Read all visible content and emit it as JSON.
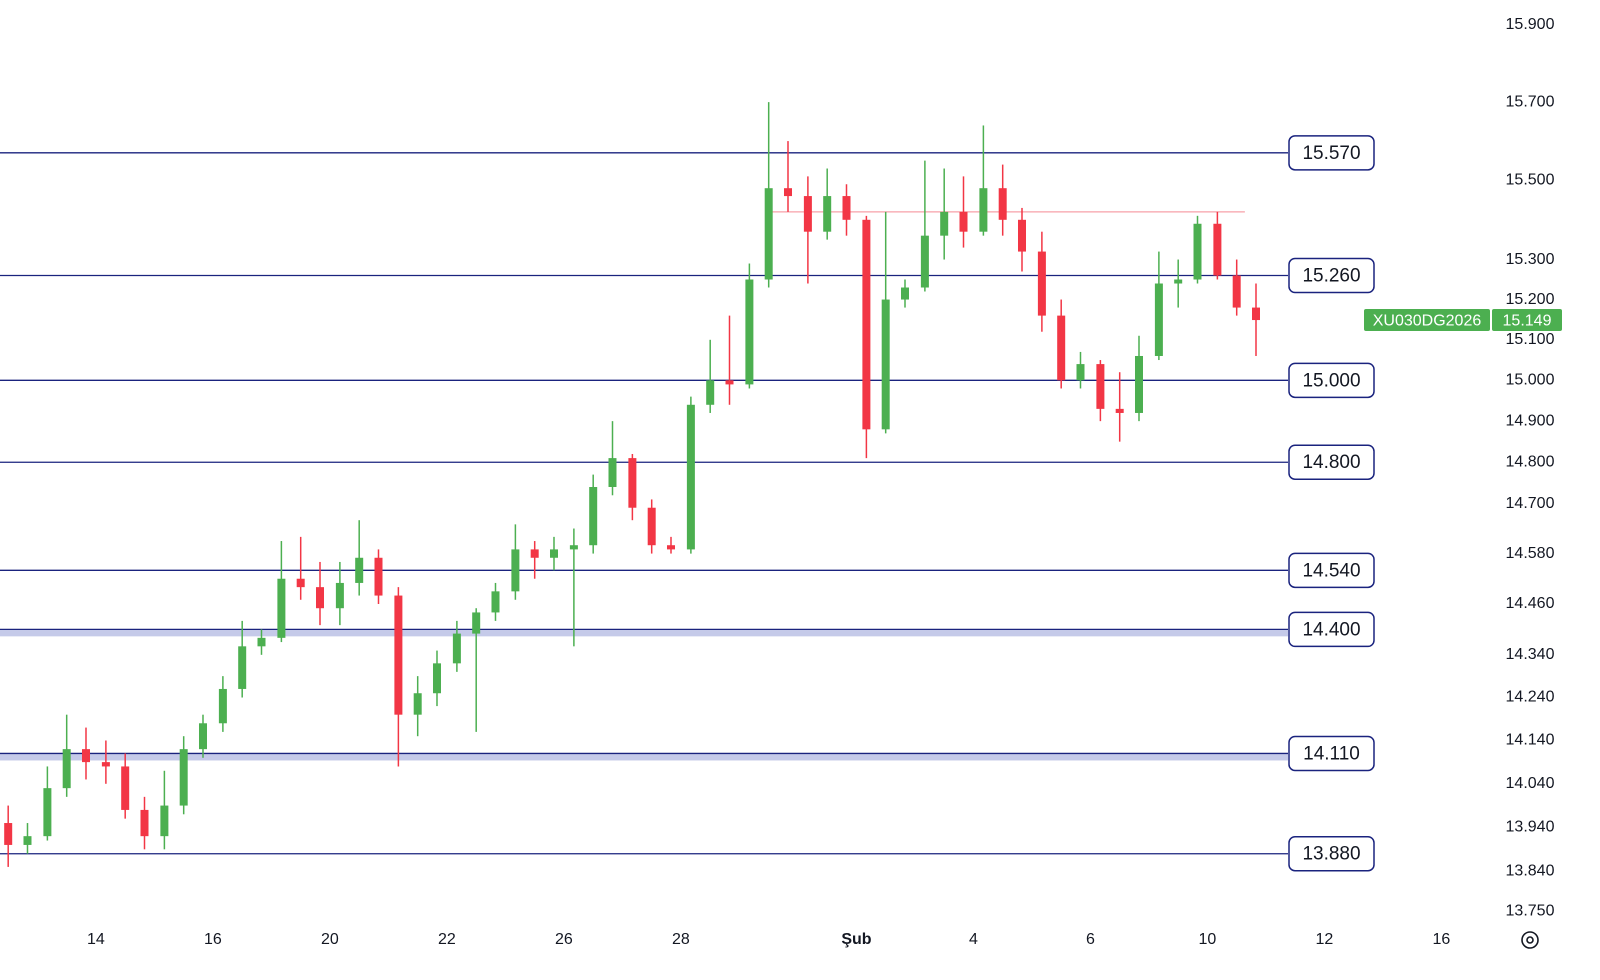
{
  "chart_data": {
    "type": "candlestick",
    "x": [
      -1.5,
      -1.17,
      -0.83,
      -0.5,
      -0.17,
      0.17,
      0.5,
      0.83,
      1.17,
      1.5,
      1.83,
      2.17,
      2.5,
      2.83,
      3.17,
      3.5,
      3.83,
      4.17,
      4.5,
      4.83,
      5.17,
      5.5,
      5.83,
      6.17,
      6.5,
      6.83,
      7.17,
      7.5,
      7.83,
      8.17,
      8.5,
      8.83,
      9.17,
      9.5,
      9.83,
      10.17,
      10.5,
      10.83,
      11.17,
      11.5,
      11.83,
      12.17,
      12.5,
      12.83,
      13.17,
      13.5,
      13.83,
      14.17,
      14.5,
      14.83,
      15.17,
      15.5,
      15.83,
      16.17,
      16.5,
      16.83,
      17.17,
      17.5,
      17.83,
      18.17,
      18.5,
      18.83,
      19.17,
      19.5,
      19.83
    ],
    "open": [
      13950,
      13900,
      13920,
      14030,
      14120,
      14090,
      14080,
      13980,
      13920,
      13990,
      14120,
      14180,
      14260,
      14360,
      14380,
      14520,
      14500,
      14450,
      14510,
      14570,
      14480,
      14200,
      14250,
      14320,
      14390,
      14440,
      14490,
      14590,
      14570,
      14590,
      14600,
      14740,
      14810,
      14690,
      14600,
      14590,
      14940,
      15000,
      14990,
      15250,
      15480,
      15460,
      15370,
      15460,
      15400,
      14880,
      15200,
      15230,
      15360,
      15420,
      15370,
      15480,
      15400,
      15320,
      15160,
      15000,
      15040,
      14930,
      14920,
      15060,
      15240,
      15250,
      15390,
      15260,
      15180
    ],
    "high": [
      13990,
      13950,
      14080,
      14200,
      14170,
      14140,
      14110,
      14010,
      14070,
      14150,
      14200,
      14290,
      14420,
      14400,
      14610,
      14620,
      14560,
      14560,
      14660,
      14590,
      14500,
      14290,
      14350,
      14420,
      14450,
      14510,
      14650,
      14610,
      14620,
      14640,
      14770,
      14900,
      14820,
      14710,
      14620,
      14960,
      15100,
      15160,
      15290,
      15700,
      15600,
      15510,
      15530,
      15490,
      15410,
      15420,
      15250,
      15550,
      15530,
      15510,
      15640,
      15540,
      15430,
      15370,
      15200,
      15070,
      15050,
      15020,
      15110,
      15320,
      15300,
      15410,
      15420,
      15300,
      15240
    ],
    "low": [
      13850,
      13880,
      13910,
      14010,
      14050,
      14040,
      13960,
      13890,
      13890,
      13970,
      14100,
      14160,
      14240,
      14340,
      14370,
      14470,
      14410,
      14410,
      14480,
      14460,
      14080,
      14150,
      14220,
      14300,
      14160,
      14420,
      14470,
      14520,
      14540,
      14360,
      14580,
      14720,
      14660,
      14580,
      14580,
      14580,
      14920,
      14940,
      14980,
      15230,
      15420,
      15240,
      15350,
      15360,
      14810,
      14870,
      15180,
      15220,
      15300,
      15330,
      15360,
      15360,
      15270,
      15120,
      14980,
      14980,
      14900,
      14850,
      14900,
      15050,
      15180,
      15240,
      15250,
      15160,
      15060
    ],
    "close": [
      13900,
      13920,
      14030,
      14120,
      14090,
      14080,
      13980,
      13920,
      13990,
      14120,
      14180,
      14260,
      14360,
      14380,
      14520,
      14500,
      14450,
      14510,
      14570,
      14480,
      14200,
      14250,
      14320,
      14390,
      14440,
      14490,
      14590,
      14570,
      14590,
      14600,
      14740,
      14810,
      14690,
      14600,
      14590,
      14940,
      15000,
      14990,
      15250,
      15480,
      15460,
      15370,
      15460,
      15400,
      14880,
      15200,
      15230,
      15360,
      15420,
      15370,
      15480,
      15400,
      15320,
      15160,
      15000,
      15040,
      14930,
      14920,
      15060,
      15240,
      15250,
      15390,
      15260,
      15180,
      15149
    ],
    "up_color": "#4caf50",
    "down_color": "#f23645",
    "log_scale": true,
    "ylim": [
      13730,
      15965
    ],
    "yticks": [
      {
        "value": 15900,
        "label": "15.900"
      },
      {
        "value": 15700,
        "label": "15.700"
      },
      {
        "value": 15500,
        "label": "15.500"
      },
      {
        "value": 15300,
        "label": "15.300"
      },
      {
        "value": 15200,
        "label": "15.200"
      },
      {
        "value": 15100,
        "label": "15.100"
      },
      {
        "value": 15000,
        "label": "15.000"
      },
      {
        "value": 14900,
        "label": "14.900"
      },
      {
        "value": 14800,
        "label": "14.800"
      },
      {
        "value": 14700,
        "label": "14.700"
      },
      {
        "value": 14580,
        "label": "14.580"
      },
      {
        "value": 14460,
        "label": "14.460"
      },
      {
        "value": 14340,
        "label": "14.340"
      },
      {
        "value": 14240,
        "label": "14.240"
      },
      {
        "value": 14140,
        "label": "14.140"
      },
      {
        "value": 14040,
        "label": "14.040"
      },
      {
        "value": 13940,
        "label": "13.940"
      },
      {
        "value": 13840,
        "label": "13.840"
      },
      {
        "value": 13750,
        "label": "13.750"
      }
    ],
    "xlim": [
      -1.64,
      23.83
    ],
    "xticks": [
      {
        "value": 0,
        "label": "14"
      },
      {
        "value": 2,
        "label": "16"
      },
      {
        "value": 4,
        "label": "20"
      },
      {
        "value": 6,
        "label": "22"
      },
      {
        "value": 8,
        "label": "26"
      },
      {
        "value": 10,
        "label": "28"
      },
      {
        "value": 13,
        "label": "Şub"
      },
      {
        "value": 15,
        "label": "4"
      },
      {
        "value": 17,
        "label": "6"
      },
      {
        "value": 19,
        "label": "10"
      },
      {
        "value": 21,
        "label": "12"
      },
      {
        "value": 23,
        "label": "16"
      }
    ],
    "levels": [
      {
        "value": 15570,
        "label": "15.570"
      },
      {
        "value": 15260,
        "label": "15.260"
      },
      {
        "value": 15000,
        "label": "15.000"
      },
      {
        "value": 14800,
        "label": "14.800"
      },
      {
        "value": 14540,
        "label": "14.540"
      },
      {
        "value": 14400,
        "label": "14.400",
        "shaded": true
      },
      {
        "value": 14110,
        "label": "14.110",
        "shaded": true
      },
      {
        "value": 13880,
        "label": "13.880"
      }
    ],
    "level_color": "#1a237e",
    "band_color": "#c5cae9",
    "resistance": {
      "value": 15420,
      "x": [
        11.52,
        19.64
      ],
      "color": "#f7a1a8"
    },
    "last_price": {
      "symbol": "XU030DG2026",
      "value": 15149,
      "label": "15.149",
      "color": "#4caf50"
    }
  }
}
